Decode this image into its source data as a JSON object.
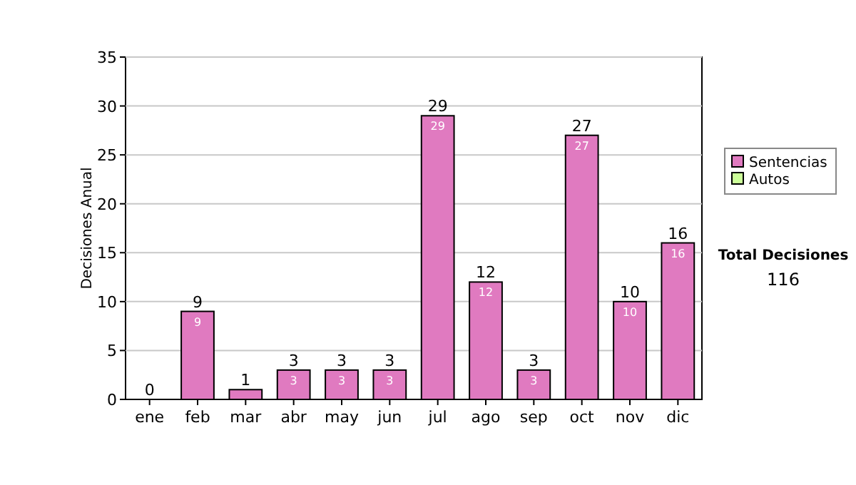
{
  "chart_data": {
    "type": "bar",
    "ylabel": "Decisiones Anual",
    "categories": [
      "ene",
      "feb",
      "mar",
      "abr",
      "may",
      "jun",
      "jul",
      "ago",
      "sep",
      "oct",
      "nov",
      "dic"
    ],
    "series": [
      {
        "name": "Sentencias",
        "color": "#e07ac0",
        "values": [
          0,
          9,
          1,
          3,
          3,
          3,
          29,
          12,
          3,
          27,
          10,
          16
        ],
        "value_labels": [
          null,
          "9",
          null,
          "3",
          "3",
          "3",
          "29",
          "12",
          "3",
          "27",
          "10",
          "16"
        ]
      },
      {
        "name": "Autos",
        "color": "#ccff99",
        "values": [
          0,
          0,
          0,
          0,
          0,
          0,
          0,
          0,
          0,
          0,
          0,
          0
        ]
      }
    ],
    "totals": [
      "0",
      "9",
      "1",
      "3",
      "3",
      "3",
      "29",
      "12",
      "3",
      "27",
      "10",
      "16"
    ],
    "ylim": [
      0,
      35
    ],
    "yticks": [
      0,
      5,
      10,
      15,
      20,
      25,
      30,
      35
    ],
    "grid": "y",
    "legend": "right",
    "annotations": [
      "Total Decisiones",
      "116"
    ]
  }
}
